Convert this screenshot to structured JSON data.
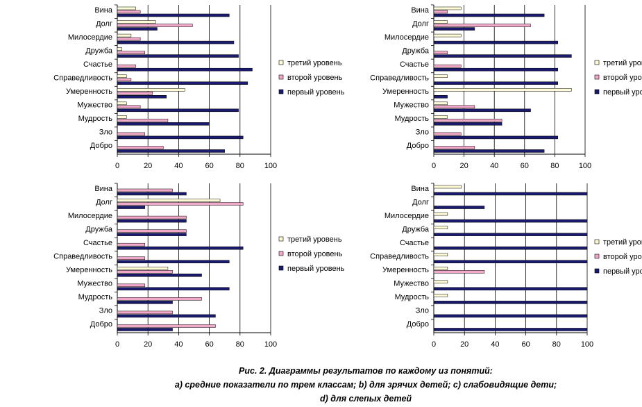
{
  "caption": {
    "line1": "Рис. 2. Диаграммы результатов по каждому из понятий:",
    "line2": "а) средние показатели по трем классам; b) для зрячих детей; с) слабовидящие дети;",
    "line3": "d) для слепых детей"
  },
  "colors": {
    "first": "#1a1a6e",
    "second": "#f2a8c8",
    "third": "#fffbd6"
  },
  "chart_data": [
    {
      "type": "bar",
      "orientation": "horizontal",
      "categories": [
        "Добро",
        "Зло",
        "Мудрость",
        "Мужество",
        "Умеренность",
        "Справедливость",
        "Счастье",
        "Дружба",
        "Милосердие",
        "Долг",
        "Вина"
      ],
      "series": [
        {
          "name": "первый уровень",
          "values": [
            70,
            82,
            60,
            79,
            32,
            85,
            88,
            79,
            76,
            26,
            73
          ]
        },
        {
          "name": "второй уровень",
          "values": [
            30,
            18,
            33,
            15,
            23,
            9,
            12,
            18,
            15,
            49,
            15
          ]
        },
        {
          "name": "третий уровень",
          "values": [
            0,
            0,
            6,
            6,
            44,
            6,
            0,
            3,
            9,
            25,
            12
          ]
        }
      ],
      "xticks": [
        "0",
        "20",
        "40",
        "60",
        "80",
        "100"
      ],
      "xlim": [
        0,
        100
      ],
      "grid": true,
      "legend": "right"
    },
    {
      "type": "bar",
      "orientation": "horizontal",
      "categories": [
        "Добро",
        "Зло",
        "Мудрость",
        "Мужество",
        "Умеренность",
        "Справедливость",
        "Счастье",
        "Дружба",
        "Милосердие",
        "Долг",
        "Вина"
      ],
      "series": [
        {
          "name": "первый уровень",
          "values": [
            73,
            82,
            45,
            64,
            9,
            82,
            82,
            91,
            82,
            27,
            73
          ]
        },
        {
          "name": "второй уровень",
          "values": [
            27,
            18,
            45,
            27,
            0,
            0,
            18,
            9,
            0,
            64,
            9
          ]
        },
        {
          "name": "третий уровень",
          "values": [
            0,
            0,
            9,
            9,
            91,
            9,
            0,
            0,
            18,
            9,
            18
          ]
        }
      ],
      "xticks": [
        "0",
        "20",
        "40",
        "60",
        "80",
        "100"
      ],
      "xlim": [
        0,
        100
      ],
      "grid": true,
      "legend": "right"
    },
    {
      "type": "bar",
      "orientation": "horizontal",
      "categories": [
        "Добро",
        "Зло",
        "Мудрость",
        "Мужество",
        "Умеренность",
        "Справедливость",
        "Счастье",
        "Дружба",
        "Милосердие",
        "Долг",
        "Вина"
      ],
      "series": [
        {
          "name": "первый уровень",
          "values": [
            36,
            64,
            36,
            73,
            55,
            73,
            82,
            45,
            45,
            18,
            45
          ]
        },
        {
          "name": "второй уровень",
          "values": [
            64,
            36,
            55,
            18,
            36,
            18,
            18,
            45,
            45,
            82,
            36
          ]
        },
        {
          "name": "третий уровень",
          "values": [
            0,
            0,
            0,
            0,
            33,
            0,
            0,
            0,
            0,
            67,
            0
          ]
        }
      ],
      "xticks": [
        "0",
        "20",
        "40",
        "60",
        "80",
        "100"
      ],
      "xlim": [
        0,
        100
      ],
      "grid": true,
      "legend": "right"
    },
    {
      "type": "bar",
      "orientation": "horizontal",
      "categories": [
        "Добро",
        "Зло",
        "Мудрость",
        "Мужество",
        "Умеренность",
        "Справедливость",
        "Счастье",
        "Дружба",
        "Милосердие",
        "Долг",
        "Вина"
      ],
      "series": [
        {
          "name": "первый уровень",
          "values": [
            100,
            100,
            100,
            100,
            0,
            100,
            100,
            100,
            100,
            33,
            100
          ]
        },
        {
          "name": "второй уровень",
          "values": [
            0,
            0,
            0,
            0,
            33,
            0,
            0,
            0,
            0,
            0,
            0
          ]
        },
        {
          "name": "третий уровень",
          "values": [
            0,
            0,
            9,
            9,
            9,
            9,
            0,
            9,
            9,
            0,
            18
          ]
        }
      ],
      "xticks": [
        "0",
        "20",
        "40",
        "60",
        "80",
        "100"
      ],
      "xlim": [
        0,
        100
      ],
      "grid": true,
      "legend": "right"
    }
  ]
}
